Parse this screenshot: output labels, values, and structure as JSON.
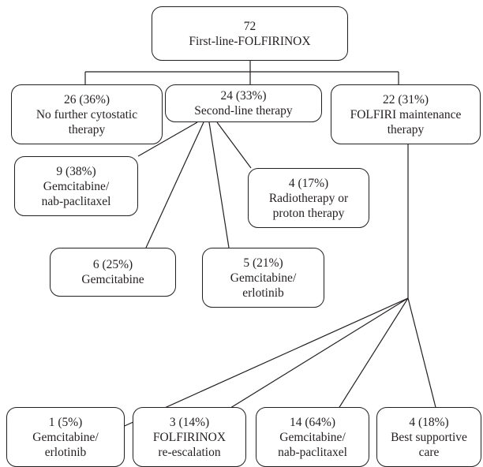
{
  "nodes": {
    "root": {
      "count": "72",
      "label": "First-line-FOLFIRINOX"
    },
    "no_further": {
      "count": "26 (36%)",
      "line1": "No further cytostatic",
      "line2": "therapy"
    },
    "second_line": {
      "count": "24 (33%)",
      "label": "Second-line therapy"
    },
    "folfiri_maint": {
      "count": "22 (31%)",
      "line1": "FOLFIRI maintenance",
      "line2": "therapy"
    },
    "gem_nab_2": {
      "count": "9 (38%)",
      "line1": "Gemcitabine/",
      "line2": "nab-paclitaxel"
    },
    "radio": {
      "count": "4 (17%)",
      "line1": "Radiotherapy or",
      "line2": "proton therapy"
    },
    "gem_2": {
      "count": "6 (25%)",
      "label": "Gemcitabine"
    },
    "gem_erl_2": {
      "count": "5 (21%)",
      "line1": "Gemcitabine/",
      "line2": "erlotinib"
    },
    "gem_erl_m": {
      "count": "1 (5%)",
      "line1": "Gemcitabine/",
      "line2": "erlotinib"
    },
    "reesc": {
      "count": "3 (14%)",
      "line1": "FOLFIRINOX",
      "line2": "re-escalation"
    },
    "gem_nab_m": {
      "count": "14 (64%)",
      "line1": "Gemcitabine/",
      "line2": "nab-paclitaxel"
    },
    "bsc": {
      "count": "4 (18%)",
      "line1": "Best supportive",
      "line2": "care"
    }
  }
}
